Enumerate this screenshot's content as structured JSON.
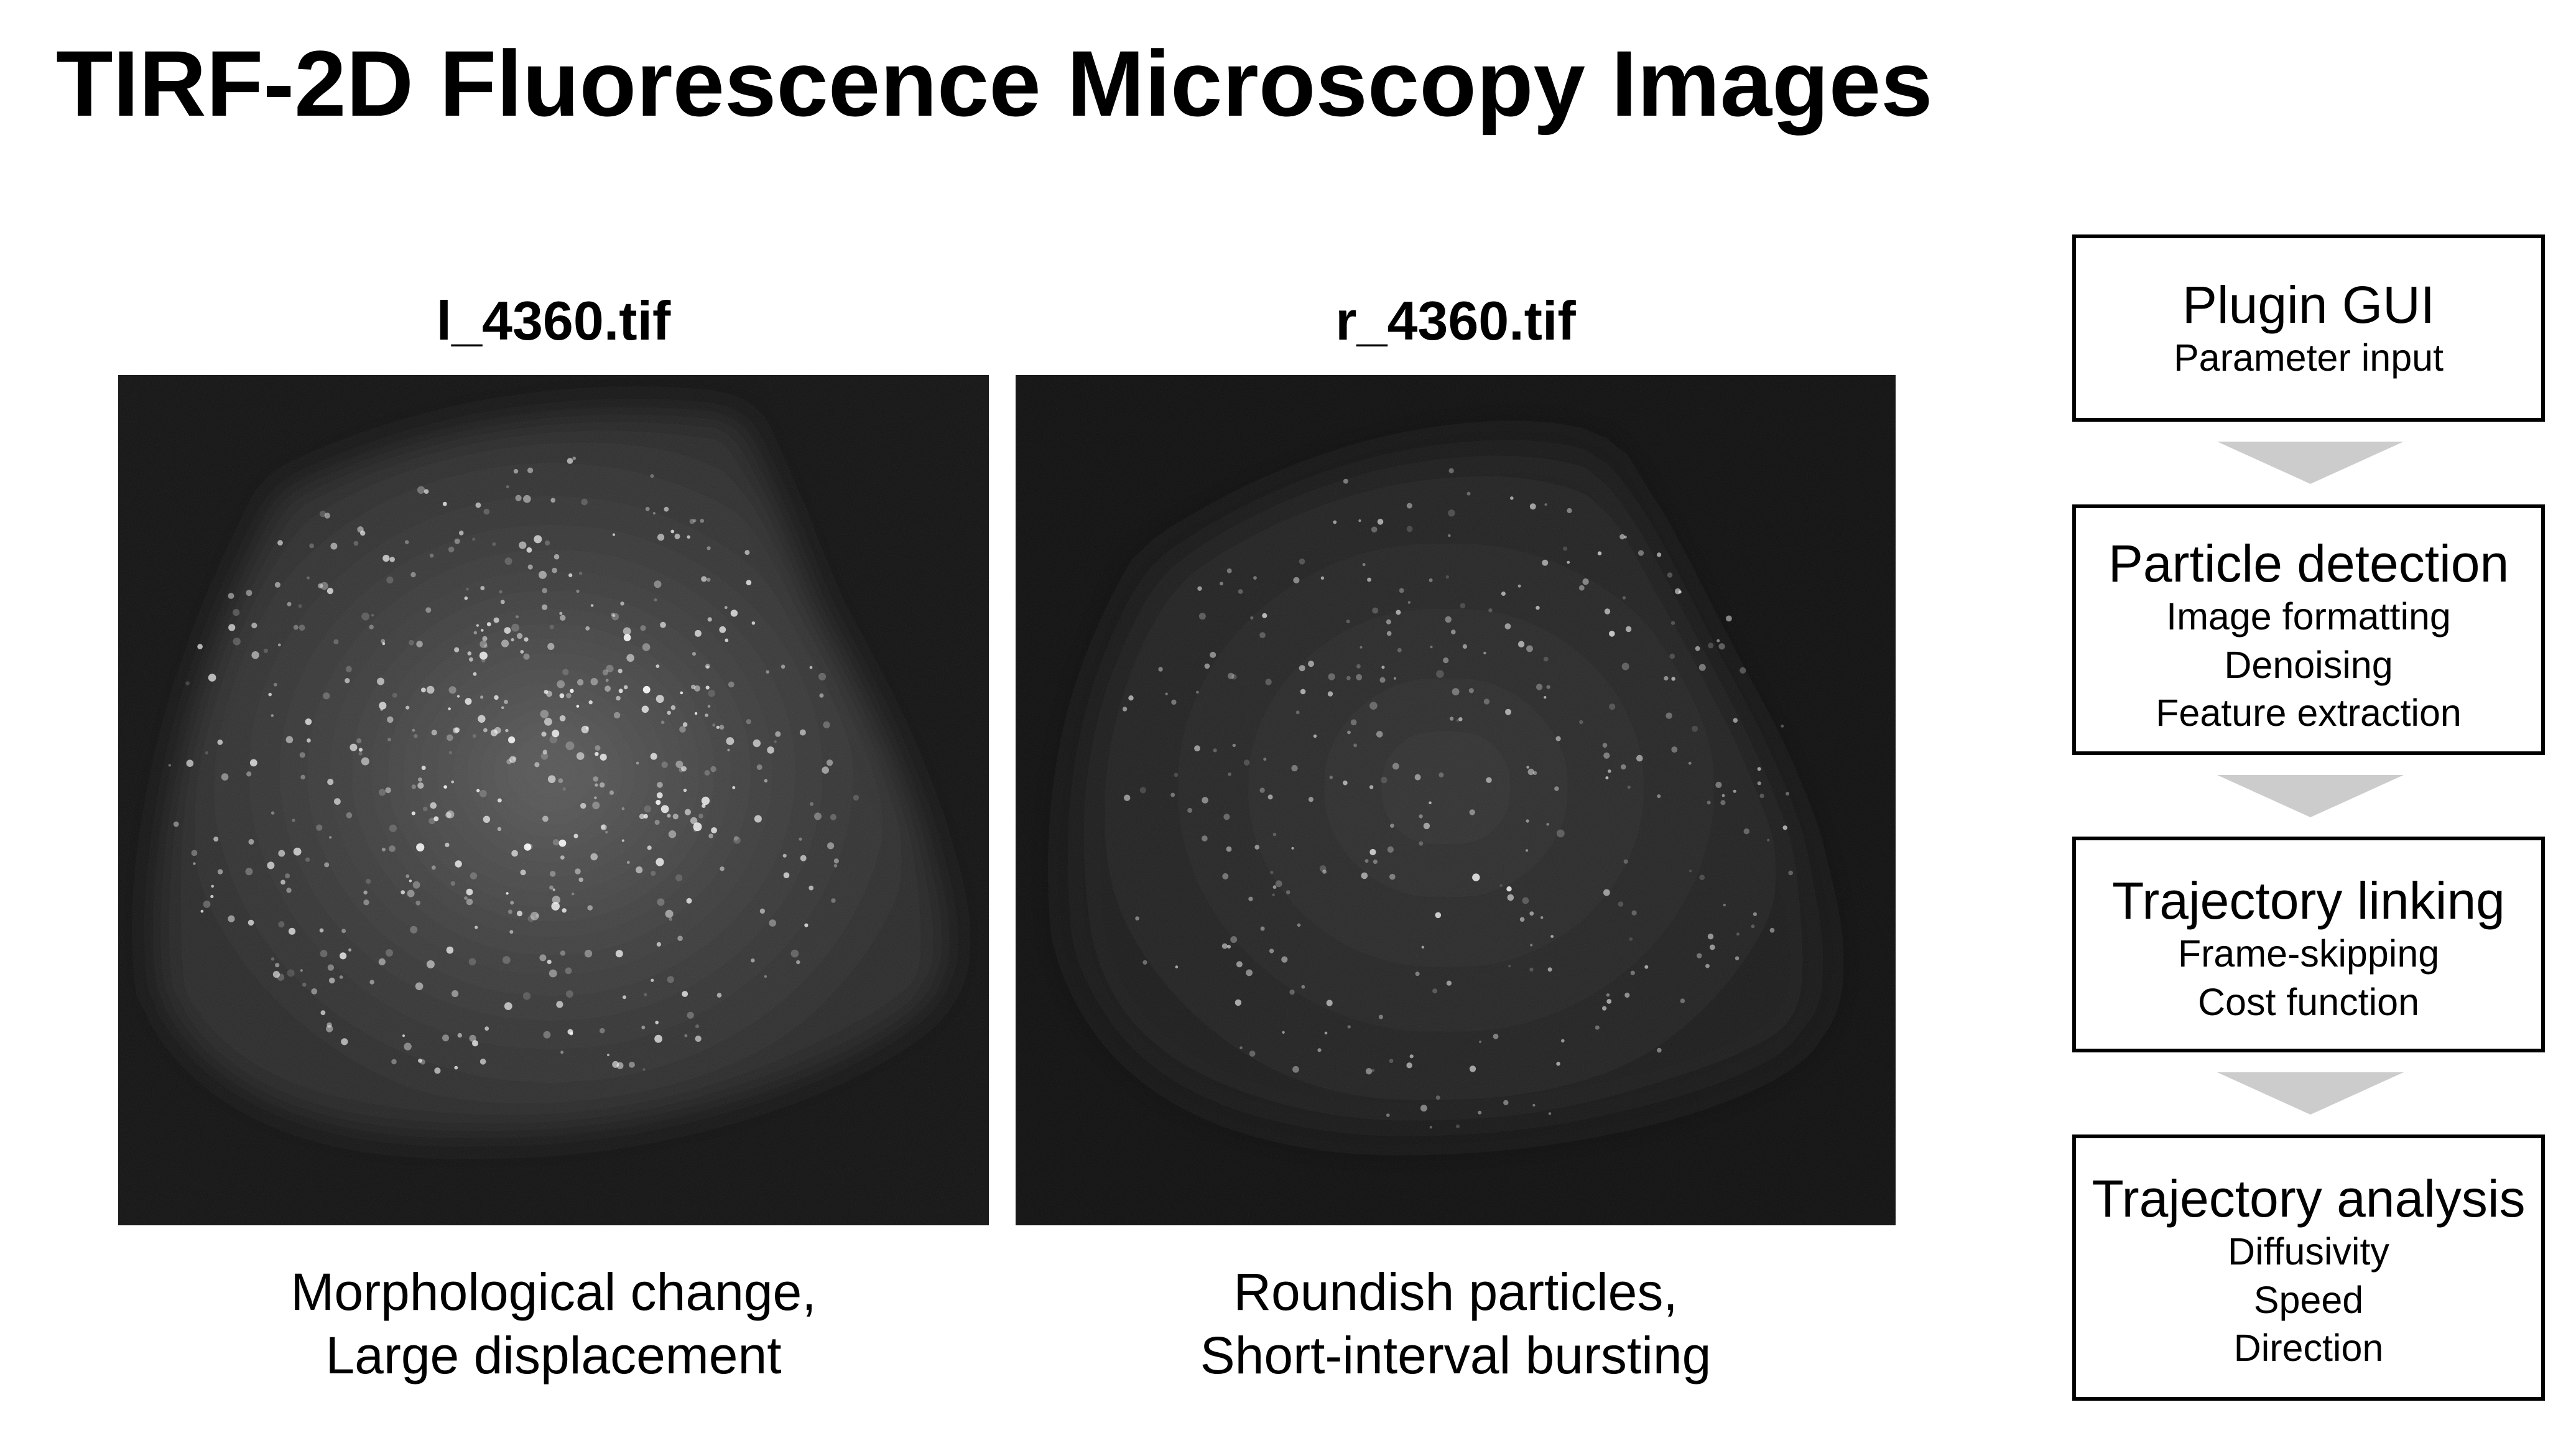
{
  "title": "TIRF-2D Fluorescence Microscopy Images",
  "panels": [
    {
      "filename": "l_4360.tif",
      "caption": [
        "Morphological change,",
        "Large displacement"
      ]
    },
    {
      "filename": "r_4360.tif",
      "caption": [
        "Roundish particles,",
        "Short-interval bursting"
      ]
    }
  ],
  "pipeline": {
    "arrow_color": "#cccccc",
    "steps": [
      {
        "title": "Plugin GUI",
        "items": [
          "Parameter input"
        ]
      },
      {
        "title": "Particle detection",
        "items": [
          "Image formatting",
          "Denoising",
          "Feature extraction"
        ]
      },
      {
        "title": "Trajectory linking",
        "items": [
          "Frame-skipping",
          "Cost function"
        ]
      },
      {
        "title": "Trajectory analysis",
        "items": [
          "Diffusivity",
          "Speed",
          "Direction"
        ]
      }
    ]
  }
}
